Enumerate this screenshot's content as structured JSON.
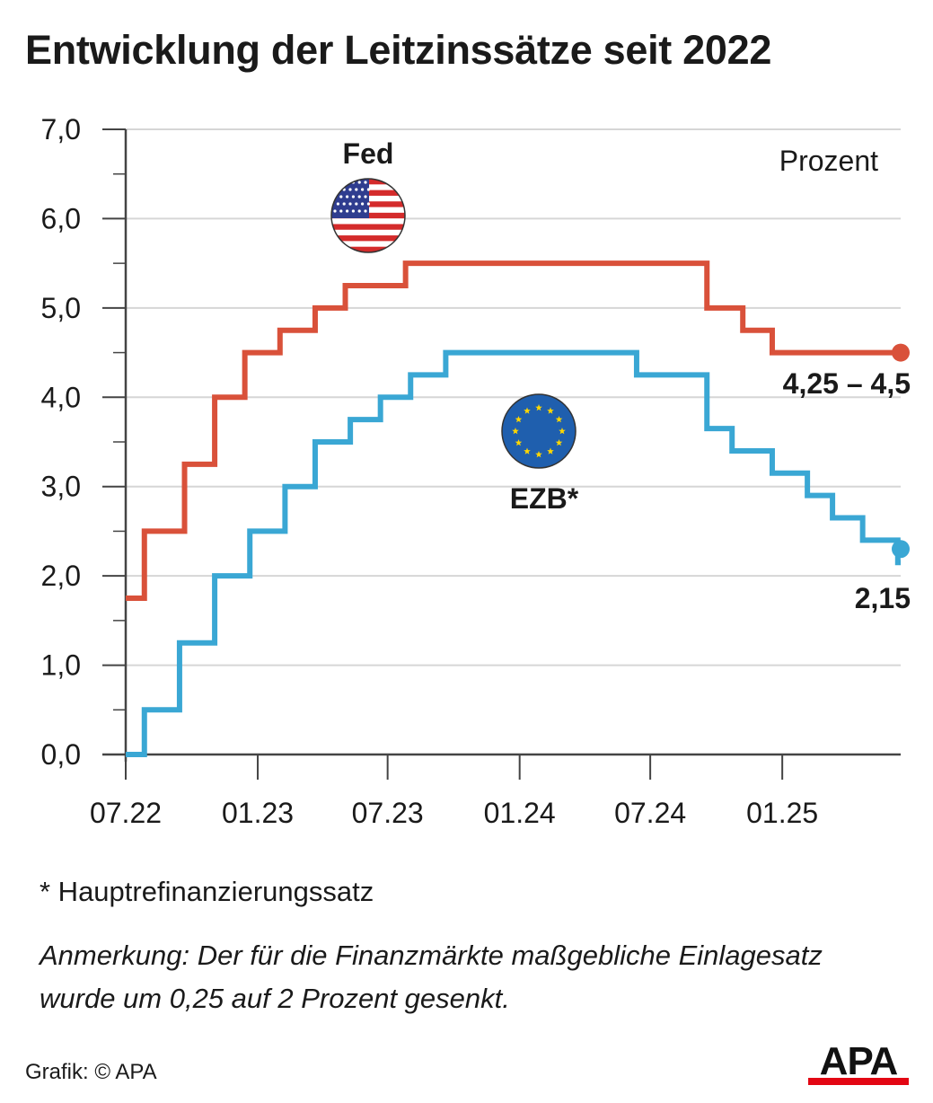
{
  "title": "Entwicklung der Leitzinssätze seit 2022",
  "chart_data": {
    "type": "line",
    "step": true,
    "unit_label": "Prozent",
    "ylim": [
      0,
      7
    ],
    "y_ticks": [
      "0,0",
      "1,0",
      "2,0",
      "3,0",
      "4,0",
      "5,0",
      "6,0",
      "7,0"
    ],
    "x_ticks": [
      "07.22",
      "01.23",
      "07.23",
      "01.24",
      "07.24",
      "01.25"
    ],
    "grid": true,
    "series": [
      {
        "name": "Fed",
        "color": "#d9513a",
        "end_label": "4,25 – 4,5",
        "x": [
          "2022-07-01",
          "2022-07-27",
          "2022-09-21",
          "2022-11-02",
          "2022-12-14",
          "2023-02-01",
          "2023-03-22",
          "2023-05-03",
          "2023-07-26",
          "2024-09-18",
          "2024-11-07",
          "2024-12-18",
          "2025-06-15"
        ],
        "values": [
          1.75,
          2.5,
          3.25,
          4.0,
          4.5,
          4.75,
          5.0,
          5.25,
          5.5,
          5.0,
          4.75,
          4.5,
          4.5
        ]
      },
      {
        "name": "EZB*",
        "color": "#3aa7d4",
        "end_label": "2,15",
        "x": [
          "2022-07-01",
          "2022-07-27",
          "2022-09-14",
          "2022-11-02",
          "2022-12-21",
          "2023-02-08",
          "2023-03-22",
          "2023-05-10",
          "2023-06-21",
          "2023-08-02",
          "2023-09-20",
          "2024-06-12",
          "2024-09-18",
          "2024-10-23",
          "2024-12-18",
          "2025-02-05",
          "2025-03-12",
          "2025-04-23",
          "2025-06-11",
          "2025-06-15"
        ],
        "values": [
          0.0,
          0.5,
          1.25,
          2.0,
          2.5,
          3.0,
          3.5,
          3.75,
          4.0,
          4.25,
          4.5,
          4.25,
          3.65,
          3.4,
          3.15,
          2.9,
          2.65,
          2.4,
          2.15,
          2.15
        ]
      }
    ]
  },
  "footnote": "* Hauptrefinanzierungssatz",
  "note": "Anmerkung: Der für die Finanzmärkte maßgebliche Einlagesatz wurde um 0,25 auf 2 Prozent gesenkt.",
  "credit": "Grafik: © APA",
  "logo_text": "APA",
  "colors": {
    "fed": "#d9513a",
    "ezb": "#3aa7d4",
    "eu_blue": "#1f5fae",
    "eu_star": "#ffd700",
    "grid": "#d6d6d6",
    "axis": "#444444"
  }
}
